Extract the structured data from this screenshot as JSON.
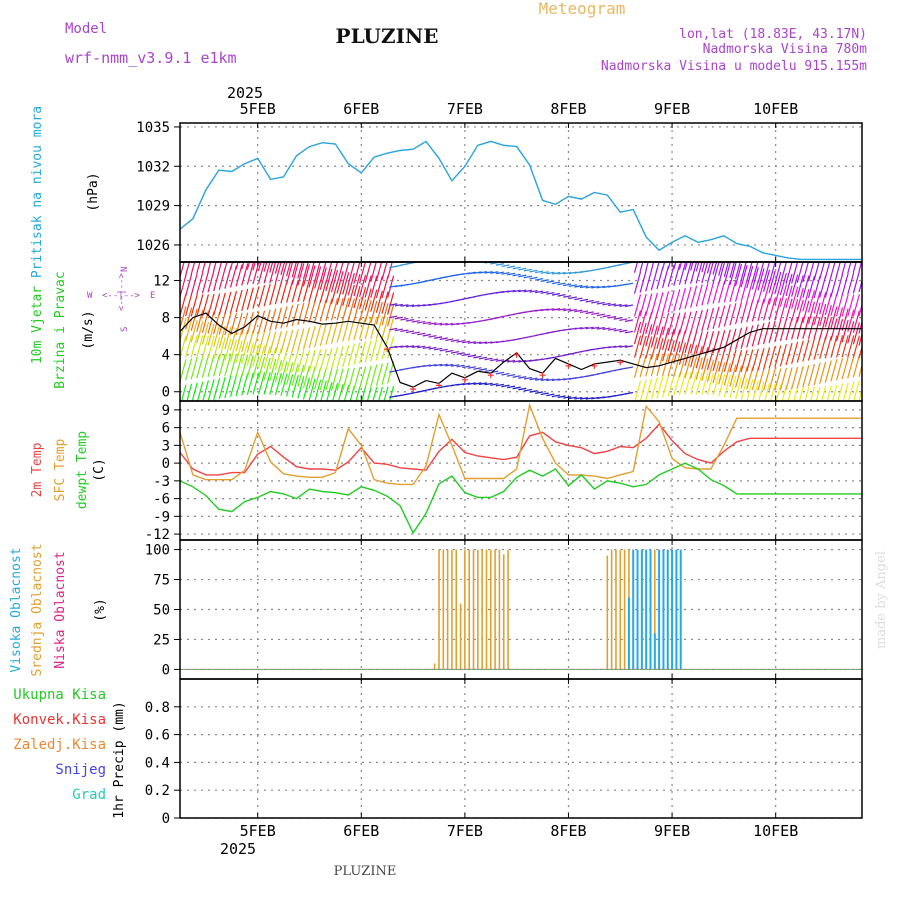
{
  "header": {
    "model_label": "Model",
    "model_name": "wrf-nmm_v3.9.1  e1km",
    "station": "PLUZINE",
    "product": "Meteogram",
    "coords": "lon,lat (18.83E, 43.17N)",
    "elevation": "Nadmorska Visina 780m",
    "model_elevation": "Nadmorska Visina u modelu 915.155m",
    "footer_station": "PLUZINE",
    "watermark": "made by Angel"
  },
  "colors": {
    "pressure": "#29a3dd",
    "temp2m": "#ee4444",
    "sfc_temp": "#e0a030",
    "dewpoint": "#22cc22",
    "high_cloud": "#22aaee",
    "mid_cloud": "#e0a030",
    "low_cloud": "#dd2288",
    "header_purple": "#aa44cc",
    "meteogram_orange": "#e8b860",
    "grid": "#888888"
  },
  "time_axis": {
    "top_year": "2025",
    "bottom_year": "2025",
    "days": [
      "5FEB",
      "6FEB",
      "7FEB",
      "8FEB",
      "9FEB",
      "10FEB"
    ]
  },
  "panels": {
    "pressure": {
      "ylabel_line1": "Pritisak na nivou mora",
      "unit": "(hPa)",
      "ticks": [
        "1026",
        "1029",
        "1032",
        "1035"
      ]
    },
    "wind": {
      "ylabel_line1": "10m Vjetar",
      "ylabel_line2": "Brzina i Pravac",
      "unit": "(m/s)",
      "ticks": [
        "0",
        "4",
        "8",
        "12"
      ],
      "compass": {
        "n": "N",
        "w": "W",
        "e": "E",
        "s": "S"
      }
    },
    "temperature": {
      "ylabel_line1": "2m Temp",
      "ylabel_line2": "SFC Temp",
      "ylabel_line3": "dewpt Temp",
      "unit": "(C)",
      "ticks": [
        "-12",
        "-9",
        "-6",
        "-3",
        "0",
        "3",
        "6",
        "9"
      ]
    },
    "cloud": {
      "ylabel_line1": "Visoka Oblacnost",
      "ylabel_line2": "Srednja Oblacnost",
      "ylabel_line3": "Niska Oblacnost",
      "unit": "(%)",
      "ticks": [
        "0",
        "25",
        "50",
        "75",
        "100"
      ]
    },
    "precip": {
      "legend": [
        "Ukupna Kisa",
        "Konvek.Kisa",
        "Zaledj.Kisa",
        "Snijeg",
        "Grad"
      ],
      "ylabel": "1hr Precip (mm)",
      "ticks": [
        "0",
        "0.2",
        "0.4",
        "0.6",
        "0.8"
      ]
    }
  },
  "chart_data": [
    {
      "type": "line",
      "title": "Pritisak na nivou mora",
      "ylabel": "(hPa)",
      "x_unit": "hours from 00 UTC 5 Feb 2025",
      "ylim": [
        1024.7,
        1035.3
      ],
      "series": [
        {
          "name": "Pritisak na nivou mora",
          "x": [
            -6,
            -3,
            0,
            3,
            6,
            9,
            12,
            15,
            18,
            21,
            24,
            27,
            30,
            33,
            36,
            39,
            42,
            45,
            48,
            51,
            54,
            57,
            60,
            63,
            66,
            69,
            72,
            75,
            78,
            81,
            84,
            87,
            90,
            93,
            96,
            99,
            102,
            105,
            108,
            111,
            114,
            117,
            120,
            123,
            126,
            129,
            132,
            135,
            138,
            141,
            144,
            147,
            150,
            152
          ],
          "values": [
            1027.2,
            1028.0,
            1030.2,
            1031.7,
            1031.6,
            1032.2,
            1032.6,
            1031.0,
            1031.2,
            1032.8,
            1033.5,
            1033.8,
            1033.7,
            1032.2,
            1031.5,
            1032.7,
            1033.0,
            1033.2,
            1033.3,
            1033.9,
            1032.6,
            1030.9,
            1032.0,
            1033.6,
            1033.9,
            1033.6,
            1033.5,
            1032.1,
            1029.4,
            1029.1,
            1029.7,
            1029.5,
            1030.0,
            1029.8,
            1028.5,
            1028.7,
            1026.6,
            1025.6,
            1026.2,
            1026.7,
            1026.2,
            1026.4,
            1026.7,
            1026.1,
            1025.9,
            1025.4,
            1025.2,
            1025.0,
            1024.9,
            1024.9,
            1024.9,
            1024.9,
            1024.9,
            1024.9
          ]
        }
      ]
    },
    {
      "type": "line",
      "title": "10m Vjetar Brzina i Pravac",
      "ylabel": "(m/s)",
      "ylim": [
        -1,
        14
      ],
      "series": [
        {
          "name": "10m Vjetar",
          "x": [
            -6,
            -3,
            0,
            3,
            6,
            9,
            12,
            15,
            18,
            21,
            24,
            27,
            30,
            33,
            36,
            39,
            42,
            45,
            48,
            51,
            54,
            57,
            60,
            63,
            66,
            69,
            72,
            75,
            78,
            81,
            84,
            87,
            90,
            93,
            96,
            99,
            102,
            105,
            108,
            111,
            114,
            117,
            120,
            123,
            126,
            129,
            132,
            135,
            138,
            141,
            144,
            147,
            150,
            152
          ],
          "values": [
            6.5,
            8.0,
            8.5,
            7.2,
            6.3,
            7.0,
            8.2,
            7.6,
            7.4,
            7.8,
            7.6,
            7.3,
            7.4,
            7.6,
            7.4,
            7.2,
            4.8,
            1.0,
            0.5,
            1.2,
            0.9,
            2.0,
            1.5,
            2.2,
            2.0,
            3.2,
            4.2,
            2.5,
            2.0,
            3.6,
            3.0,
            2.4,
            3.0,
            3.2,
            3.4,
            3.0,
            2.6,
            2.8,
            3.2,
            3.6,
            4.0,
            4.4,
            4.8,
            5.6,
            6.4,
            6.8,
            6.8,
            6.8,
            6.8,
            6.8,
            6.8,
            6.8,
            6.8,
            6.8
          ]
        }
      ]
    },
    {
      "type": "line",
      "title": "2m Temp / SFC Temp / dewpt Temp",
      "ylabel": "(C)",
      "ylim": [
        -13,
        10.5
      ],
      "series": [
        {
          "name": "2m Temp",
          "x": [
            -6,
            -3,
            0,
            3,
            6,
            9,
            12,
            15,
            18,
            21,
            24,
            27,
            30,
            33,
            36,
            39,
            42,
            45,
            48,
            51,
            54,
            57,
            60,
            63,
            66,
            69,
            72,
            75,
            78,
            81,
            84,
            87,
            90,
            93,
            96,
            99,
            102,
            105,
            108,
            111,
            114,
            117,
            120,
            123,
            126,
            129,
            132,
            135,
            138,
            141,
            144,
            147,
            150,
            152
          ],
          "values": [
            1.8,
            -1.0,
            -2.0,
            -2.0,
            -1.6,
            -1.6,
            1.5,
            2.8,
            1.0,
            -0.6,
            -1.0,
            -1.0,
            -1.2,
            0.2,
            2.6,
            0.0,
            -0.2,
            -0.8,
            -1.0,
            -1.2,
            2.0,
            4.0,
            1.8,
            1.2,
            0.9,
            0.6,
            1.0,
            4.6,
            5.2,
            3.6,
            3.0,
            2.6,
            1.6,
            2.0,
            2.8,
            2.6,
            4.2,
            6.6,
            3.8,
            1.6,
            0.6,
            0.0,
            2.0,
            3.6,
            4.2,
            4.2,
            4.2,
            4.2,
            4.2,
            4.2,
            4.2,
            4.2,
            4.2,
            4.2
          ]
        },
        {
          "name": "SFC Temp",
          "x": [
            -6,
            -3,
            0,
            3,
            6,
            9,
            12,
            15,
            18,
            21,
            24,
            27,
            30,
            33,
            36,
            39,
            42,
            45,
            48,
            51,
            54,
            57,
            60,
            63,
            66,
            69,
            72,
            75,
            78,
            81,
            84,
            87,
            90,
            93,
            96,
            99,
            102,
            105,
            108,
            111,
            114,
            117,
            120,
            123,
            126,
            129,
            132,
            135,
            138,
            141,
            144,
            147,
            150,
            152
          ],
          "values": [
            5.2,
            -2.0,
            -2.8,
            -2.8,
            -2.8,
            -1.2,
            5.2,
            0.2,
            -1.8,
            -2.2,
            -2.4,
            -2.4,
            -1.6,
            5.8,
            3.0,
            -2.8,
            -3.4,
            -3.6,
            -3.6,
            -0.5,
            8.2,
            3.0,
            -2.6,
            -2.6,
            -2.6,
            -2.6,
            -1.0,
            9.8,
            4.2,
            0.0,
            -2.0,
            -2.0,
            -2.2,
            -2.6,
            -2.0,
            -1.4,
            9.6,
            7.0,
            0.8,
            -0.8,
            -1.0,
            -1.0,
            3.0,
            7.6,
            7.6,
            7.6,
            7.6,
            7.6,
            7.6,
            7.6,
            7.6,
            7.6,
            7.6,
            7.6
          ]
        },
        {
          "name": "dewpt Temp",
          "x": [
            -6,
            -3,
            0,
            3,
            6,
            9,
            12,
            15,
            18,
            21,
            24,
            27,
            30,
            33,
            36,
            39,
            42,
            45,
            48,
            51,
            54,
            57,
            60,
            63,
            66,
            69,
            72,
            75,
            78,
            81,
            84,
            87,
            90,
            93,
            96,
            99,
            102,
            105,
            108,
            111,
            114,
            117,
            120,
            123,
            126,
            129,
            132,
            135,
            138,
            141,
            144,
            147,
            150,
            152
          ],
          "values": [
            -3.0,
            -4.0,
            -5.5,
            -7.8,
            -8.2,
            -6.5,
            -5.8,
            -4.8,
            -5.2,
            -6.0,
            -4.4,
            -4.8,
            -5.0,
            -5.4,
            -4.0,
            -4.6,
            -5.6,
            -7.2,
            -11.8,
            -8.5,
            -3.5,
            -2.2,
            -5.0,
            -5.8,
            -5.8,
            -4.8,
            -2.4,
            -1.2,
            -2.2,
            -1.0,
            -3.8,
            -2.0,
            -4.4,
            -3.0,
            -3.4,
            -4.0,
            -3.6,
            -2.0,
            -1.0,
            0.0,
            -1.0,
            -2.8,
            -3.8,
            -5.2,
            -5.2,
            -5.2,
            -5.2,
            -5.2,
            -5.2,
            -5.2,
            -5.2,
            -5.2,
            -5.2,
            -5.2
          ]
        }
      ]
    },
    {
      "type": "bar",
      "title": "Oblacnost",
      "ylabel": "(%)",
      "ylim": [
        -8,
        108
      ],
      "series": [
        {
          "name": "Srednja Oblacnost",
          "x": [
            53,
            54,
            55,
            56,
            57,
            58,
            59,
            60,
            61,
            62,
            63,
            64,
            65,
            66,
            67,
            68,
            69,
            70,
            71,
            72,
            73,
            74,
            75,
            76,
            77,
            78,
            79,
            80,
            81,
            82,
            83,
            84,
            85,
            86,
            87,
            88,
            89,
            90,
            91,
            92,
            93,
            94,
            95,
            96,
            97,
            98,
            99,
            100,
            101,
            102,
            103,
            104,
            105,
            106,
            107,
            108,
            109,
            110,
            111,
            112,
            113,
            114,
            115,
            116,
            117,
            118,
            119,
            120,
            121,
            122,
            123,
            124,
            125,
            126,
            127,
            128,
            129,
            130,
            131,
            132,
            133,
            134,
            135,
            136,
            137,
            138,
            139,
            140,
            141,
            142,
            143,
            144,
            145,
            146,
            147,
            148,
            149,
            150,
            151,
            152
          ],
          "values": [
            5,
            100,
            100,
            100,
            100,
            100,
            55,
            100,
            100,
            100,
            100,
            100,
            100,
            100,
            100,
            100,
            96,
            100,
            0,
            0,
            0,
            0,
            0,
            0,
            0,
            0,
            0,
            0,
            0,
            0,
            0,
            0,
            0,
            0,
            0,
            0,
            0,
            0,
            0,
            0,
            95,
            100,
            100,
            100,
            100,
            100,
            100,
            100,
            100,
            100,
            100,
            100,
            100,
            100,
            100,
            100,
            0,
            0,
            0,
            0,
            0,
            0,
            0,
            0,
            0,
            0,
            0,
            0,
            0,
            0,
            0,
            0,
            0,
            0,
            0,
            0,
            0,
            0,
            0,
            0,
            0,
            0,
            0,
            0,
            0,
            0,
            0,
            0,
            0,
            0,
            0,
            0,
            0,
            0,
            0,
            0,
            0,
            0,
            0,
            0
          ]
        },
        {
          "name": "Visoka Oblacnost",
          "x": [
            98,
            99,
            100,
            101,
            102,
            103,
            104,
            105,
            106,
            107,
            108,
            109,
            110
          ],
          "values": [
            60,
            100,
            100,
            100,
            100,
            100,
            30,
            100,
            100,
            100,
            100,
            100,
            100
          ]
        },
        {
          "name": "Niska Oblacnost",
          "x": [
            -6,
            152
          ],
          "values": [
            0,
            0
          ]
        }
      ]
    },
    {
      "type": "line",
      "title": "1hr Precip",
      "ylabel": "1hr Precip (mm)",
      "ylim": [
        0,
        1.0
      ],
      "series": [
        {
          "name": "Ukupna Kisa",
          "x": [
            -6,
            152
          ],
          "values": [
            0,
            0
          ]
        },
        {
          "name": "Konvek.Kisa",
          "x": [
            -6,
            152
          ],
          "values": [
            0,
            0
          ]
        },
        {
          "name": "Zaledj.Kisa",
          "x": [
            -6,
            152
          ],
          "values": [
            0,
            0
          ]
        },
        {
          "name": "Snijeg",
          "x": [
            -6,
            152
          ],
          "values": [
            0,
            0
          ]
        },
        {
          "name": "Grad",
          "x": [
            -6,
            152
          ],
          "values": [
            0,
            0
          ]
        }
      ]
    }
  ]
}
